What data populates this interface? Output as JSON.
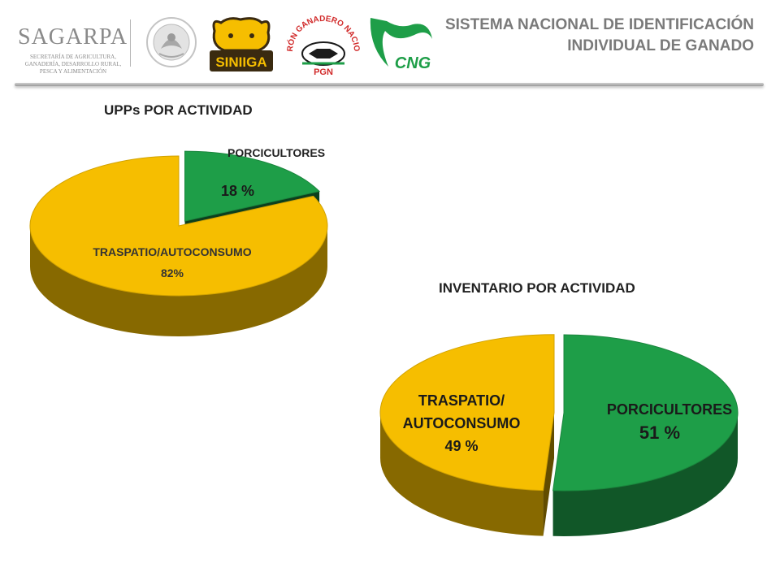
{
  "header": {
    "title_line1": "SISTEMA NACIONAL DE IDENTIFICACIÓN",
    "title_line2": "INDIVIDUAL DE GANADO",
    "sagarpa_name": "SAGARPA",
    "sagarpa_sub": "SECRETARÍA DE AGRICULTURA, GANADERÍA, DESARROLLO RURAL, PESCA Y ALIMENTACIÓN",
    "siniiga_text": "SINIIGA",
    "pgn_arc_text": "PADRÓN GANADERO NACIONAL",
    "pgn_text": "PGN",
    "cng_text": "CNG"
  },
  "colors": {
    "green": "#1e9e48",
    "green_dark": "#0e5a26",
    "yellow": "#f6be00",
    "yellow_dark": "#9a6a00",
    "header_text": "#7a7a7a"
  },
  "chart_data": [
    {
      "type": "pie",
      "title": "UPPs  POR ACTIVIDAD",
      "slices": [
        {
          "label": "PORCICULTORES",
          "value": 18,
          "value_label": "18 %",
          "color": "#1e9e48",
          "exploded": true
        },
        {
          "label": "TRASPATIO/AUTOCONSUMO",
          "value": 82,
          "value_label": "82%",
          "color": "#f6be00",
          "exploded": false
        }
      ]
    },
    {
      "type": "pie",
      "title": "INVENTARIO POR ACTIVIDAD",
      "slices": [
        {
          "label": "PORCICULTORES",
          "value": 51,
          "value_label": "51 %",
          "color": "#1e9e48",
          "exploded": false
        },
        {
          "label_lines": [
            "TRASPATIO/",
            "AUTOCONSUMO"
          ],
          "label": "TRASPATIO/ AUTOCONSUMO",
          "value": 49,
          "value_label": "49 %",
          "color": "#f6be00",
          "exploded": true
        }
      ]
    }
  ]
}
